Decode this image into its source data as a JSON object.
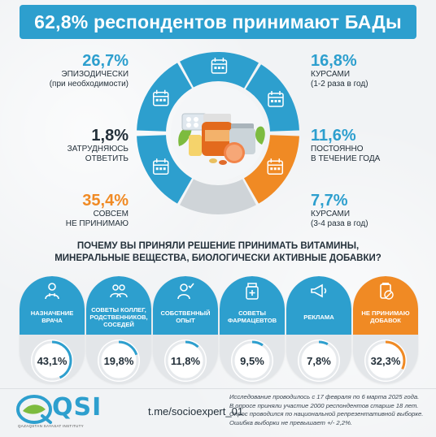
{
  "title": "62,8% респондентов принимают БАДы",
  "ring": {
    "stats": [
      {
        "id": "episodic",
        "pct": "26,7%",
        "label_line1": "ЭПИЗОДИЧЕСКИ",
        "label_line2": "(при необходимости)",
        "color": "#2d9fce",
        "value": 26.7
      },
      {
        "id": "hard",
        "pct": "1,8%",
        "label_line1": "ЗАТРУДНЯЮСЬ",
        "label_line2": "ОТВЕТИТЬ",
        "color": "#23303a",
        "value": 1.8
      },
      {
        "id": "no",
        "pct": "35,4%",
        "label_line1": "СОВСЕМ",
        "label_line2": "НЕ ПРИНИМАЮ",
        "color": "#f08a24",
        "value": 35.4
      },
      {
        "id": "courses12",
        "pct": "16,8%",
        "label_line1": "КУРСАМИ",
        "label_line2": "(1-2 раза в год)",
        "color": "#2d9fce",
        "value": 16.8
      },
      {
        "id": "constant",
        "pct": "11,6%",
        "label_line1": "ПОСТОЯННО",
        "label_line2": "В ТЕЧЕНИЕ ГОДА",
        "color": "#2d9fce",
        "value": 11.6
      },
      {
        "id": "courses34",
        "pct": "7,7%",
        "label_line1": "КУРСАМИ",
        "label_line2": "(3-4 раза в год)",
        "color": "#2d9fce",
        "value": 7.7
      }
    ]
  },
  "question": {
    "line1": "ПОЧЕМУ ВЫ ПРИНЯЛИ РЕШЕНИЕ ПРИНИМАТЬ ВИТАМИНЫ,",
    "line2": "МИНЕРАЛЬНЫЕ ВЕЩЕСТВА, БИОЛОГИЧЕСКИ АКТИВНЫЕ ДОБАВКИ?"
  },
  "reasons": [
    {
      "label": "НАЗНАЧЕНИЕ ВРАЧА",
      "pct": "43,1%",
      "value": 43.1,
      "icon": "doctor-icon",
      "color": "#2d9fce"
    },
    {
      "label": "СОВЕТЫ КОЛЛЕГ, РОДСТВЕННИКОВ, СОСЕДЕЙ",
      "pct": "19,8%",
      "value": 19.8,
      "icon": "people-icon",
      "color": "#2d9fce"
    },
    {
      "label": "СОБСТВЕННЫЙ ОПЫТ",
      "pct": "11,8%",
      "value": 11.8,
      "icon": "person-check-icon",
      "color": "#2d9fce"
    },
    {
      "label": "СОВЕТЫ ФАРМАЦЕВТОВ",
      "pct": "9,5%",
      "value": 9.5,
      "icon": "pharmacist-icon",
      "color": "#2d9fce"
    },
    {
      "label": "РЕКЛАМА",
      "pct": "7,8%",
      "value": 7.8,
      "icon": "megaphone-icon",
      "color": "#2d9fce"
    },
    {
      "label": "НЕ ПРИНИМАЮ ДОБАВОК",
      "pct": "32,3%",
      "value": 32.3,
      "icon": "no-pills-icon",
      "color": "#f08a24"
    }
  ],
  "footer": {
    "logo": "QSI",
    "logo_sub": "QAZAQSTAN SAYASAT INSTITUTY",
    "telegram": "t.me/socioexpert_01",
    "note_lines": [
      "Исследование проводилось с 17 февраля по 6 марта 2025 года.",
      "В опросе приняли участие 2000 респондентов старше 18 лет.",
      "Опрос проводился по национальной репрезентативной выборке.",
      "Ошибка выборки не превышает +/- 2,2%."
    ]
  }
}
